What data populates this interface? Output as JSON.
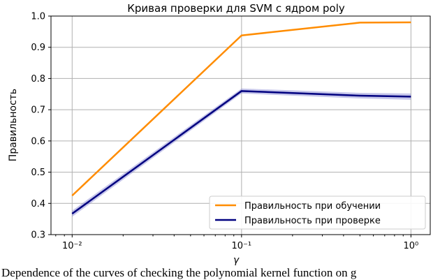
{
  "chart_data": {
    "type": "line",
    "title": "Кривая проверки для SVM с ядром poly",
    "xlabel": "γ",
    "ylabel": "Правильность",
    "xscale": "log",
    "xlim": [
      0.0075,
      1.3
    ],
    "ylim": [
      0.3,
      1.0
    ],
    "x_ticks": [
      0.01,
      0.1,
      1
    ],
    "x_tick_labels": [
      "10⁻²",
      "10⁻¹",
      "10⁰"
    ],
    "y_ticks": [
      0.3,
      0.4,
      0.5,
      0.6,
      0.7,
      0.8,
      0.9,
      1.0
    ],
    "y_tick_labels": [
      "0.3",
      "0.4",
      "0.5",
      "0.6",
      "0.7",
      "0.8",
      "0.9",
      "1.0"
    ],
    "grid": true,
    "legend_position": "bottom-right",
    "series": [
      {
        "name": "Правильность при обучении",
        "color": "#ff8c00",
        "x": [
          0.01,
          0.1,
          0.5,
          1
        ],
        "y": [
          0.425,
          0.938,
          0.979,
          0.98
        ],
        "band": [
          0.002,
          0.002,
          0.002,
          0.002
        ]
      },
      {
        "name": "Правильность при проверке",
        "color": "#000080",
        "band_color": "#8080d0",
        "x": [
          0.01,
          0.1,
          0.5,
          1
        ],
        "y": [
          0.367,
          0.76,
          0.745,
          0.742
        ],
        "band": [
          0.01,
          0.008,
          0.009,
          0.01
        ]
      }
    ]
  },
  "caption": "Dependence of the curves of checking the polynomial kernel function on g"
}
